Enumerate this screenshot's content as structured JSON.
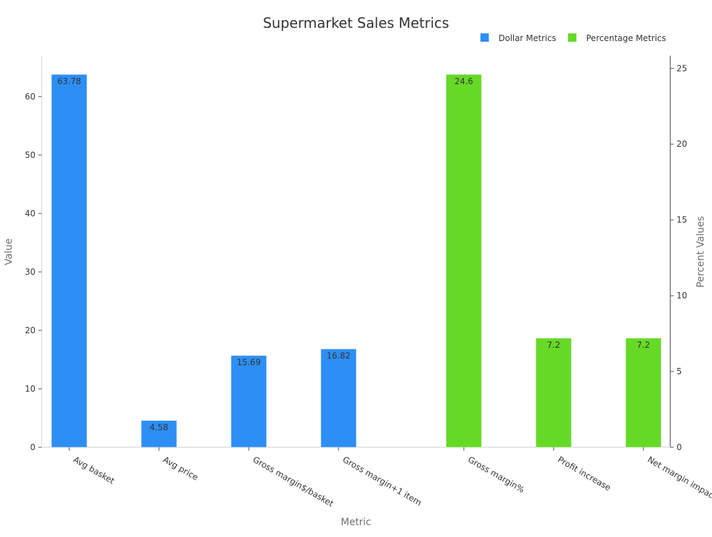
{
  "chart_data": {
    "type": "bar",
    "title": "Supermarket Sales Metrics",
    "xlabel": "Metric",
    "ylabel": "Value",
    "y2label": "Percent Values",
    "categories": [
      "Avg basket",
      "Avg price",
      "Gross margin$/basket",
      "Gross margin+1 item",
      "Gross margin%",
      "Profit increase",
      "Net margin impact"
    ],
    "series": [
      {
        "name": "Dollar Metrics",
        "axis": "left",
        "color": "#2d8ff5",
        "values": [
          63.78,
          4.58,
          15.69,
          16.82,
          null,
          null,
          null
        ],
        "labels": [
          "63.78",
          "4.58",
          "15.69",
          "16.82",
          "",
          "",
          ""
        ]
      },
      {
        "name": "Percentage Metrics",
        "axis": "right",
        "color": "#66d927",
        "values": [
          null,
          null,
          null,
          null,
          24.6,
          7.2,
          7.2
        ],
        "labels": [
          "",
          "",
          "",
          "",
          "24.6",
          "7.2",
          "7.2"
        ]
      }
    ],
    "ylim": [
      0,
      67
    ],
    "y2lim": [
      0,
      25.84
    ],
    "yticks": [
      0,
      10,
      20,
      30,
      40,
      50,
      60
    ],
    "y2ticks": [
      0,
      5,
      10,
      15,
      20,
      25
    ],
    "legend_position": "top-right",
    "grid": false
  }
}
